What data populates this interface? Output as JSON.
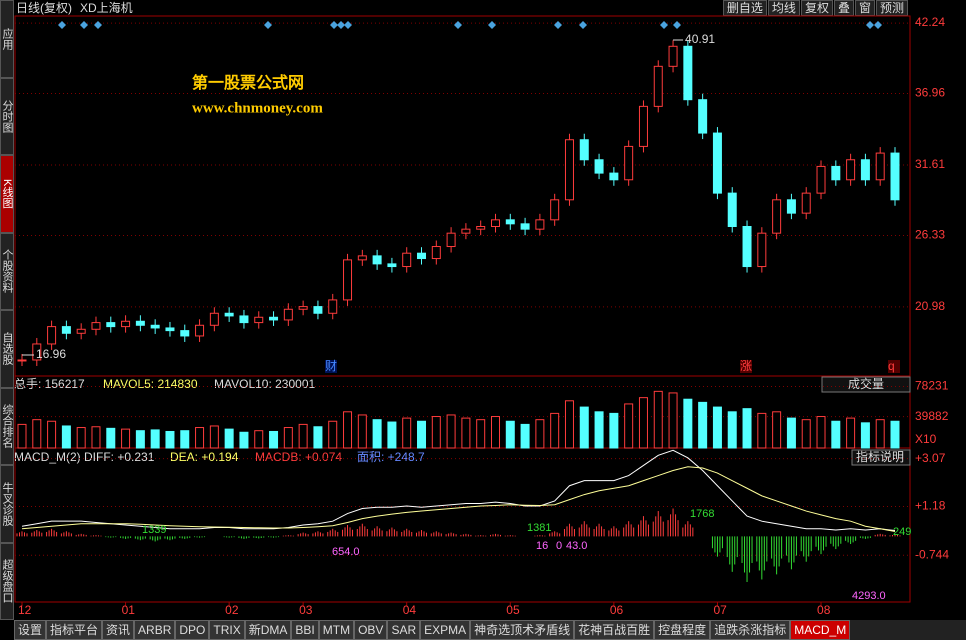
{
  "header": {
    "title": "日线(复权)",
    "stock": "XD上海机",
    "buttons": [
      "删自选",
      "均线",
      "复权",
      "叠",
      "窗",
      "预测"
    ]
  },
  "sidebar": [
    "应用",
    "分时图",
    "K线图",
    "个股资料",
    "自选股",
    "综合排名",
    "牛叉诊股",
    "超级盘口"
  ],
  "price_panel": {
    "ylim": [
      15.8,
      42.77
    ],
    "yticks": [
      42.24,
      36.96,
      31.61,
      26.33,
      20.98
    ],
    "high_label": "40.91",
    "low_label": "16.96",
    "watermark": "第一股票公式网",
    "website": "www.chnmoney.com",
    "markers": [
      "财",
      "涨",
      "q"
    ],
    "close": [
      17.0,
      18.2,
      19.5,
      19.0,
      19.3,
      19.8,
      19.5,
      19.9,
      19.6,
      19.4,
      19.2,
      18.8,
      19.6,
      20.5,
      20.3,
      19.8,
      20.2,
      20.0,
      20.8,
      21.0,
      20.5,
      21.5,
      24.5,
      24.8,
      24.2,
      24.0,
      25.0,
      24.6,
      25.5,
      26.5,
      26.8,
      27.0,
      27.5,
      27.2,
      26.8,
      27.5,
      29.0,
      33.5,
      32.0,
      31.0,
      30.5,
      33.0,
      36.0,
      39.0,
      40.5,
      36.5,
      34.0,
      29.5,
      27.0,
      24.0,
      26.5,
      29.0,
      28.0,
      29.5,
      31.5,
      30.5,
      32.0,
      30.5,
      32.5,
      29.0
    ]
  },
  "volume_panel": {
    "header": [
      "总手: 156217",
      "MAVOL5: 214830",
      "MAVOL10: 230001"
    ],
    "selector": "成交量",
    "ylim": [
      0,
      88970
    ],
    "yticks": [
      78231,
      39882
    ],
    "unit": "X10",
    "values": [
      30000,
      36000,
      34000,
      28000,
      26000,
      27000,
      25000,
      24000,
      22000,
      23000,
      21000,
      22000,
      26000,
      28000,
      24000,
      20000,
      22000,
      21000,
      26000,
      30000,
      27000,
      34000,
      46000,
      42000,
      36000,
      33000,
      38000,
      34000,
      40000,
      42000,
      38000,
      36000,
      40000,
      34000,
      30000,
      36000,
      44000,
      60000,
      52000,
      46000,
      44000,
      56000,
      64000,
      72000,
      70000,
      62000,
      58000,
      52000,
      46000,
      50000,
      44000,
      46000,
      38000,
      36000,
      40000,
      34000,
      38000,
      32000,
      36000,
      34000
    ]
  },
  "macd_panel": {
    "header": [
      "MACD_M(2) DIFF: +0.231",
      "DEA: +0.194",
      "MACDB: +0.074",
      "面积: +248.7"
    ],
    "button": "指标说明",
    "ylim": [
      -2.59,
      3.41
    ],
    "yticks": [
      {
        "value": 3.07,
        "label": "+3.07"
      },
      {
        "value": 1.18,
        "label": "+1.18"
      },
      {
        "value": -0.744,
        "label": "-0.744"
      }
    ],
    "annotations": [
      "1339",
      "654.0",
      "1381",
      "16",
      "0",
      "43.0",
      "1768",
      "4293.0",
      "249"
    ],
    "histogram": [
      0.2,
      0.25,
      0.3,
      0.2,
      0.1,
      0.05,
      -0.05,
      -0.1,
      -0.15,
      -0.2,
      -0.15,
      -0.1,
      -0.05,
      0.0,
      -0.05,
      -0.1,
      -0.08,
      -0.05,
      0.05,
      0.15,
      0.2,
      0.3,
      0.45,
      0.5,
      0.4,
      0.35,
      0.3,
      0.25,
      0.2,
      0.15,
      0.1,
      0.05,
      0.1,
      0.05,
      0.0,
      0.05,
      0.2,
      0.5,
      0.6,
      0.5,
      0.4,
      0.6,
      0.8,
      1.0,
      1.1,
      0.6,
      0.0,
      -0.8,
      -1.4,
      -1.8,
      -1.7,
      -1.5,
      -1.3,
      -1.0,
      -0.7,
      -0.5,
      -0.3,
      -0.1,
      0.1,
      0.07
    ],
    "diff": [
      0.4,
      0.5,
      0.6,
      0.6,
      0.6,
      0.55,
      0.5,
      0.45,
      0.4,
      0.35,
      0.3,
      0.3,
      0.3,
      0.35,
      0.35,
      0.3,
      0.3,
      0.3,
      0.35,
      0.45,
      0.5,
      0.6,
      0.9,
      1.1,
      1.15,
      1.15,
      1.2,
      1.15,
      1.2,
      1.25,
      1.3,
      1.3,
      1.35,
      1.3,
      1.2,
      1.2,
      1.4,
      2.0,
      2.2,
      2.2,
      2.2,
      2.4,
      2.8,
      3.2,
      3.4,
      3.1,
      2.6,
      2.0,
      1.4,
      0.8,
      0.6,
      0.5,
      0.4,
      0.3,
      0.3,
      0.25,
      0.3,
      0.25,
      0.3,
      0.231
    ],
    "dea": [
      0.3,
      0.35,
      0.4,
      0.45,
      0.5,
      0.5,
      0.5,
      0.5,
      0.48,
      0.45,
      0.42,
      0.4,
      0.38,
      0.37,
      0.36,
      0.35,
      0.34,
      0.33,
      0.33,
      0.35,
      0.38,
      0.42,
      0.55,
      0.7,
      0.8,
      0.88,
      0.95,
      1.0,
      1.05,
      1.1,
      1.15,
      1.2,
      1.22,
      1.25,
      1.23,
      1.22,
      1.25,
      1.45,
      1.65,
      1.8,
      1.9,
      2.0,
      2.2,
      2.4,
      2.6,
      2.75,
      2.7,
      2.5,
      2.2,
      1.9,
      1.6,
      1.4,
      1.2,
      1.0,
      0.85,
      0.7,
      0.6,
      0.4,
      0.3,
      0.194
    ]
  },
  "x_axis": {
    "labels": [
      "12",
      "01",
      "02",
      "03",
      "04",
      "05",
      "06",
      "07",
      "08"
    ],
    "index": [
      0,
      7,
      14,
      19,
      26,
      33,
      40,
      47,
      54
    ]
  },
  "tabs": [
    "设置",
    "指标平台",
    "资讯",
    "ARBR",
    "DPO",
    "TRIX",
    "新DMA",
    "BBI",
    "MTM",
    "OBV",
    "SAR",
    "EXPMA",
    "神奇选顶术矛盾线",
    "花神百战百胜",
    "控盘程度",
    "追跌杀涨指标",
    "MACD_M"
  ]
}
